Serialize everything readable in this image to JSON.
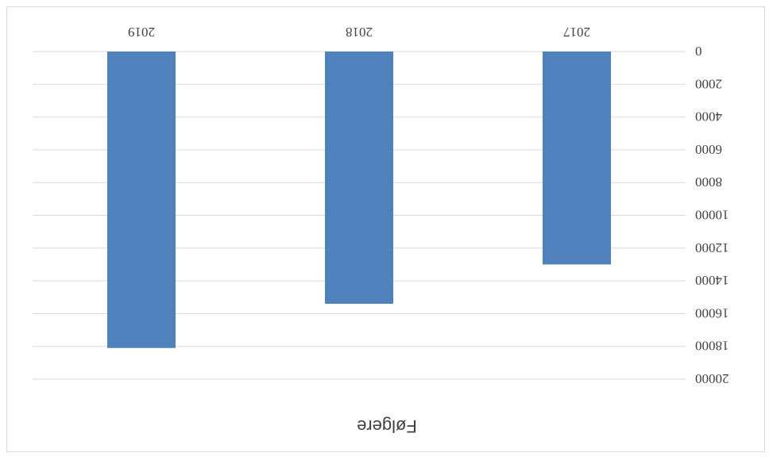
{
  "chart_data": {
    "type": "bar",
    "title": "Følgere",
    "categories": [
      "2017",
      "2018",
      "2019"
    ],
    "values": [
      13000,
      15400,
      18100
    ],
    "ylim": [
      0,
      20000
    ],
    "yticks": [
      0,
      2000,
      4000,
      6000,
      8000,
      10000,
      12000,
      14000,
      16000,
      18000,
      20000
    ],
    "grid": true,
    "rotated_180": true,
    "colors": {
      "bar": "#4f81bd",
      "grid": "#d9d9d9",
      "text": "#404040"
    }
  }
}
